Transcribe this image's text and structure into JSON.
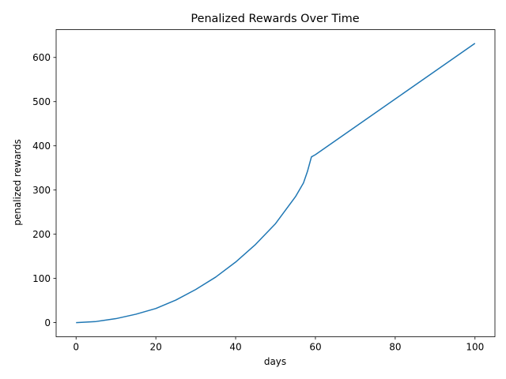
{
  "chart_data": {
    "type": "line",
    "title": "Penalized Rewards Over Time",
    "xlabel": "days",
    "ylabel": "penalized rewards",
    "xlim": [
      -5,
      105
    ],
    "ylim": [
      -32,
      663
    ],
    "xticks": [
      0,
      20,
      40,
      60,
      80,
      100
    ],
    "yticks": [
      0,
      100,
      200,
      300,
      400,
      500,
      600
    ],
    "grid": false,
    "legend": "none",
    "series": [
      {
        "color": "#1f77b4",
        "x": [
          0,
          5,
          10,
          15,
          20,
          25,
          30,
          35,
          40,
          45,
          50,
          55,
          57,
          58,
          59,
          60,
          70,
          80,
          90,
          100
        ],
        "y": [
          0,
          2.5,
          9,
          19,
          32,
          51,
          75,
          103,
          137,
          177,
          224,
          285,
          316,
          342,
          375,
          380,
          443,
          506,
          569,
          632
        ]
      }
    ]
  }
}
